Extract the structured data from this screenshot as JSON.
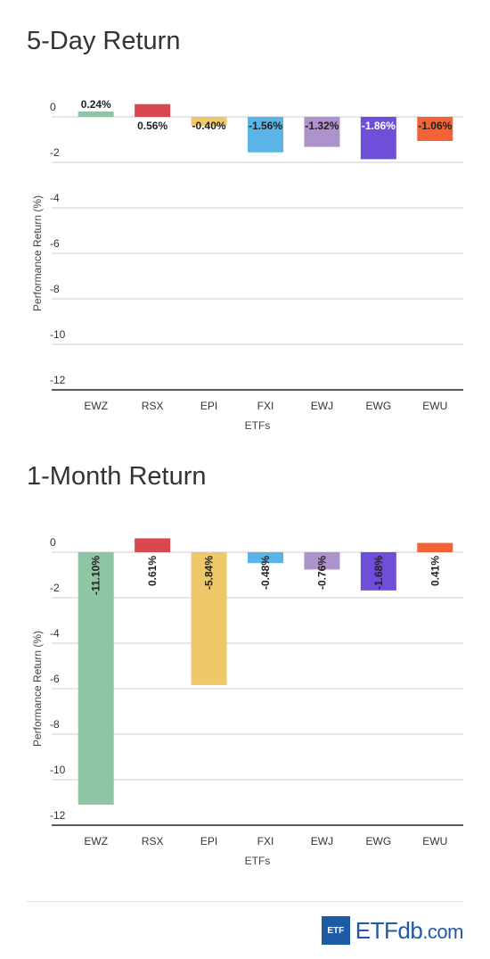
{
  "chart_data": [
    {
      "type": "bar",
      "title": "5-Day Return",
      "xlabel": "ETFs",
      "ylabel": "Performance Return (%)",
      "ylim": [
        -12,
        0
      ],
      "yticks": [
        "0",
        "-2",
        "-4",
        "-6",
        "-8",
        "-10",
        "-12"
      ],
      "label_orientation": "horizontal",
      "grid": true,
      "categories": [
        "EWZ",
        "RSX",
        "EPI",
        "FXI",
        "EWJ",
        "EWG",
        "EWU"
      ],
      "values": [
        0.24,
        0.56,
        -0.4,
        -1.56,
        -1.32,
        -1.86,
        -1.06
      ],
      "data_labels": [
        "0.24%",
        "0.56%",
        "-0.40%",
        "-1.56%",
        "-1.32%",
        "-1.86%",
        "-1.06%"
      ],
      "colors": [
        "#8fc5a5",
        "#d9484f",
        "#efc86a",
        "#5ab5e6",
        "#ad92cb",
        "#6f4fd9",
        "#f26338"
      ]
    },
    {
      "type": "bar",
      "title": "1-Month Return",
      "xlabel": "ETFs",
      "ylabel": "Performance Return (%)",
      "ylim": [
        -12,
        0
      ],
      "yticks": [
        "0",
        "-2",
        "-4",
        "-6",
        "-8",
        "-10",
        "-12"
      ],
      "label_orientation": "vertical",
      "grid": true,
      "categories": [
        "EWZ",
        "RSX",
        "EPI",
        "FXI",
        "EWJ",
        "EWG",
        "EWU"
      ],
      "values": [
        -11.1,
        0.61,
        -5.84,
        -0.48,
        -0.76,
        -1.68,
        0.41
      ],
      "data_labels": [
        "-11.10%",
        "0.61%",
        "-5.84%",
        "-0.48%",
        "-0.76%",
        "-1.68%",
        "0.41%"
      ],
      "colors": [
        "#8fc5a5",
        "#d9484f",
        "#efc86a",
        "#5ab5e6",
        "#ad92cb",
        "#6f4fd9",
        "#f26338"
      ]
    }
  ],
  "logo": {
    "box_text": "ETF",
    "word_main": "ETF",
    "word_db": "db",
    "word_com": ".com",
    "color": "#1f5aa6"
  }
}
